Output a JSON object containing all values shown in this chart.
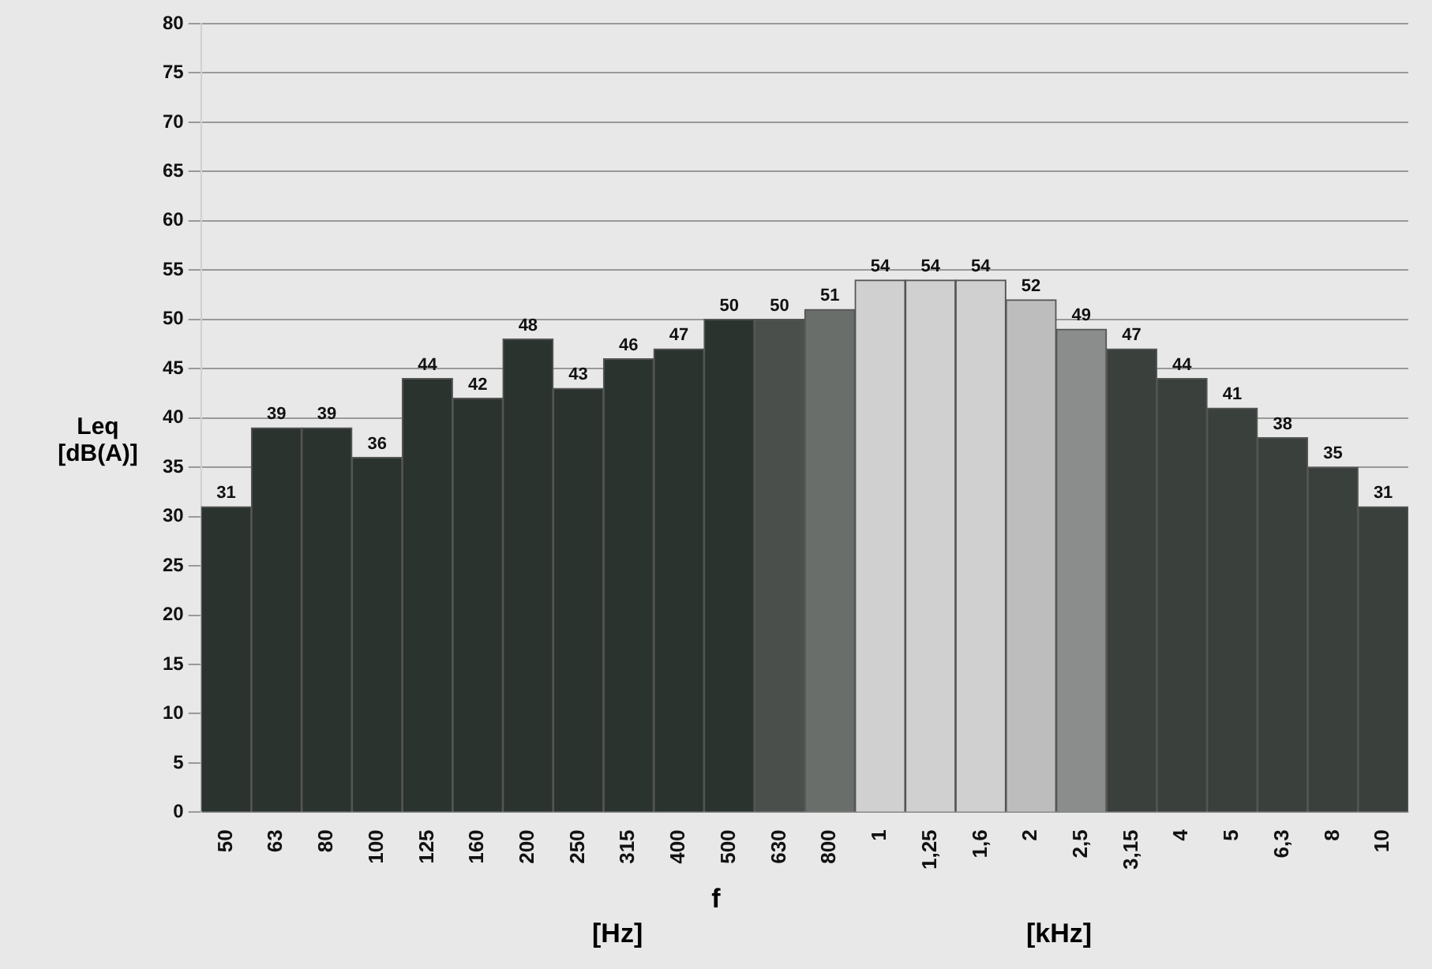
{
  "chart_data": {
    "type": "bar",
    "categories": [
      "50",
      "63",
      "80",
      "100",
      "125",
      "160",
      "200",
      "250",
      "315",
      "400",
      "500",
      "630",
      "800",
      "1",
      "1,25",
      "1,6",
      "2",
      "2,5",
      "3,15",
      "4",
      "5",
      "6,3",
      "8",
      "10"
    ],
    "values": [
      31,
      39,
      39,
      36,
      44,
      42,
      48,
      43,
      46,
      47,
      50,
      50,
      51,
      54,
      54,
      54,
      52,
      49,
      47,
      44,
      41,
      38,
      35,
      31
    ],
    "colors": [
      "#2b332f",
      "#2b332f",
      "#2b332f",
      "#2b332f",
      "#2b332f",
      "#2b332f",
      "#2b332f",
      "#2b332f",
      "#2b332f",
      "#2b332f",
      "#2b332f",
      "#4a4f4c",
      "#6a6e6b",
      "#d0d0d0",
      "#d0d0d0",
      "#d0d0d0",
      "#bdbdbd",
      "#8a8d8b",
      "#3a403c",
      "#3a403c",
      "#3a403c",
      "#3a403c",
      "#3a403c",
      "#3a403c"
    ],
    "data_labels": true,
    "xlabel": "f",
    "ylabel": "Leq [dB(A)]",
    "annotations": [
      "[Hz]",
      "[kHz]"
    ],
    "ylim": [
      0,
      80
    ],
    "yticks": [
      0,
      5,
      10,
      15,
      20,
      25,
      30,
      35,
      40,
      45,
      50,
      55,
      60,
      65,
      70,
      75,
      80
    ],
    "grid": "y",
    "legend": false
  }
}
